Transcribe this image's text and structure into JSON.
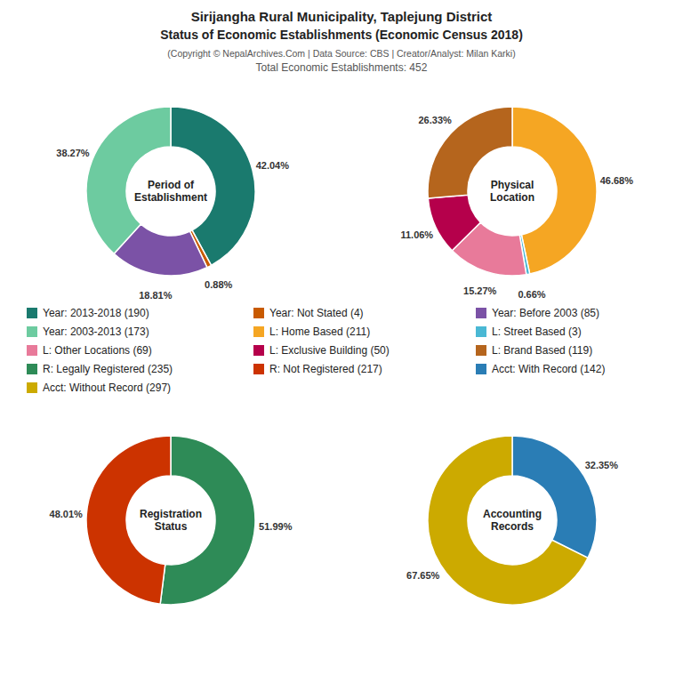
{
  "title": [
    "Sirijangha Rural Municipality, Taplejung District",
    "Status of Economic Establishments (Economic Census 2018)"
  ],
  "subtitle": [
    "(Copyright © NepalArchives.Com | Data Source: CBS | Creator/Analyst: Milan Karki)",
    "Total Economic Establishments: 452"
  ],
  "chart_data": [
    {
      "type": "pie",
      "title": "Period of\nEstablishment",
      "categories": [
        "Year: 2013-2018 (190)",
        "Year: Not Stated (4)",
        "Year: Before 2003 (85)",
        "Year: 2003-2013 (173)"
      ],
      "values": [
        42.04,
        0.88,
        18.81,
        38.27
      ],
      "value_labels": [
        "42.04%",
        "0.88%",
        "18.81%",
        "38.27%"
      ],
      "colors": [
        "#1a7a6e",
        "#c85a00",
        "#7b52a6",
        "#6dcba0"
      ],
      "data_labels": true,
      "legend": "center"
    },
    {
      "type": "pie",
      "title": "Physical\nLocation",
      "categories": [
        "L: Home Based (211)",
        "L: Street Based (3)",
        "L: Other Locations (69)",
        "L: Exclusive Building (50)",
        "L: Brand Based (119)"
      ],
      "values": [
        46.68,
        0.66,
        15.27,
        11.06,
        26.33
      ],
      "value_labels": [
        "46.68%",
        "0.66%",
        "15.27%",
        "11.06%",
        "26.33%"
      ],
      "colors": [
        "#f5a623",
        "#4ab8d4",
        "#e87a9a",
        "#b5004b",
        "#b5651d"
      ],
      "data_labels": true,
      "legend": "center"
    },
    {
      "type": "pie",
      "title": "Registration\nStatus",
      "categories": [
        "R: Legally Registered (235)",
        "R: Not Registered (217)"
      ],
      "values": [
        51.99,
        48.01
      ],
      "value_labels": [
        "51.99%",
        "48.01%"
      ],
      "colors": [
        "#2e8b57",
        "#cc3300"
      ],
      "data_labels": true,
      "legend": "center"
    },
    {
      "type": "pie",
      "title": "Accounting\nRecords",
      "categories": [
        "Acct: With Record (142)",
        "Acct: Without Record (297)"
      ],
      "values": [
        32.35,
        67.65
      ],
      "value_labels": [
        "32.35%",
        "67.65%"
      ],
      "colors": [
        "#2a7db5",
        "#ccaa00"
      ],
      "data_labels": true,
      "legend": "center"
    }
  ]
}
